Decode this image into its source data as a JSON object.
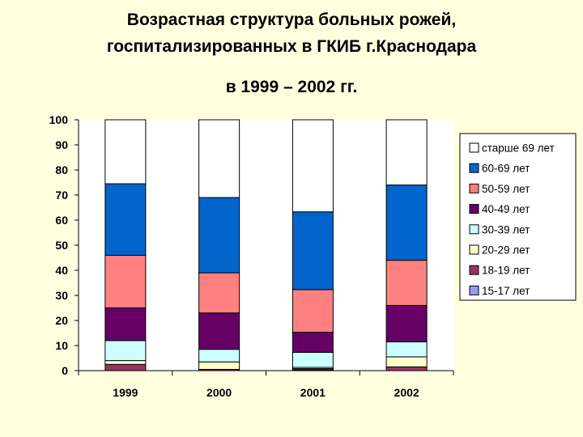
{
  "title": {
    "line1": "Возрастная структура больных рожей,",
    "line2": "госпитализированных в ГКИБ   г.Краснодара",
    "line3": "в 1999 – 2002 гг."
  },
  "chart_data": {
    "type": "bar",
    "stacked": true,
    "categories": [
      "1999",
      "2000",
      "2001",
      "2002"
    ],
    "ylim": [
      0,
      100
    ],
    "yticks": [
      0,
      10,
      20,
      30,
      40,
      50,
      60,
      70,
      80,
      90,
      100
    ],
    "legend_position": "right",
    "series": [
      {
        "name": "15-17 лет",
        "color": "#9999ff",
        "values": [
          0,
          0,
          0.3,
          0
        ]
      },
      {
        "name": "18-19 лет",
        "color": "#993366",
        "values": [
          2.5,
          0.5,
          0.5,
          1.5
        ]
      },
      {
        "name": "20-29 лет",
        "color": "#ffffcc",
        "values": [
          1.5,
          3,
          0.5,
          4
        ]
      },
      {
        "name": "30-39 лет",
        "color": "#ccffff",
        "values": [
          8,
          5,
          6,
          6
        ]
      },
      {
        "name": "40-49 лет",
        "color": "#660066",
        "values": [
          13,
          14.5,
          8,
          14.5
        ]
      },
      {
        "name": "50-59 лет",
        "color": "#ff8080",
        "values": [
          21,
          16,
          17,
          18
        ]
      },
      {
        "name": "60-69 лет",
        "color": "#0066cc",
        "values": [
          28.5,
          30,
          31,
          30
        ]
      },
      {
        "name": "старше 69 лет",
        "color": "#ffffff",
        "values": [
          25.5,
          31,
          36.7,
          26
        ]
      }
    ]
  }
}
